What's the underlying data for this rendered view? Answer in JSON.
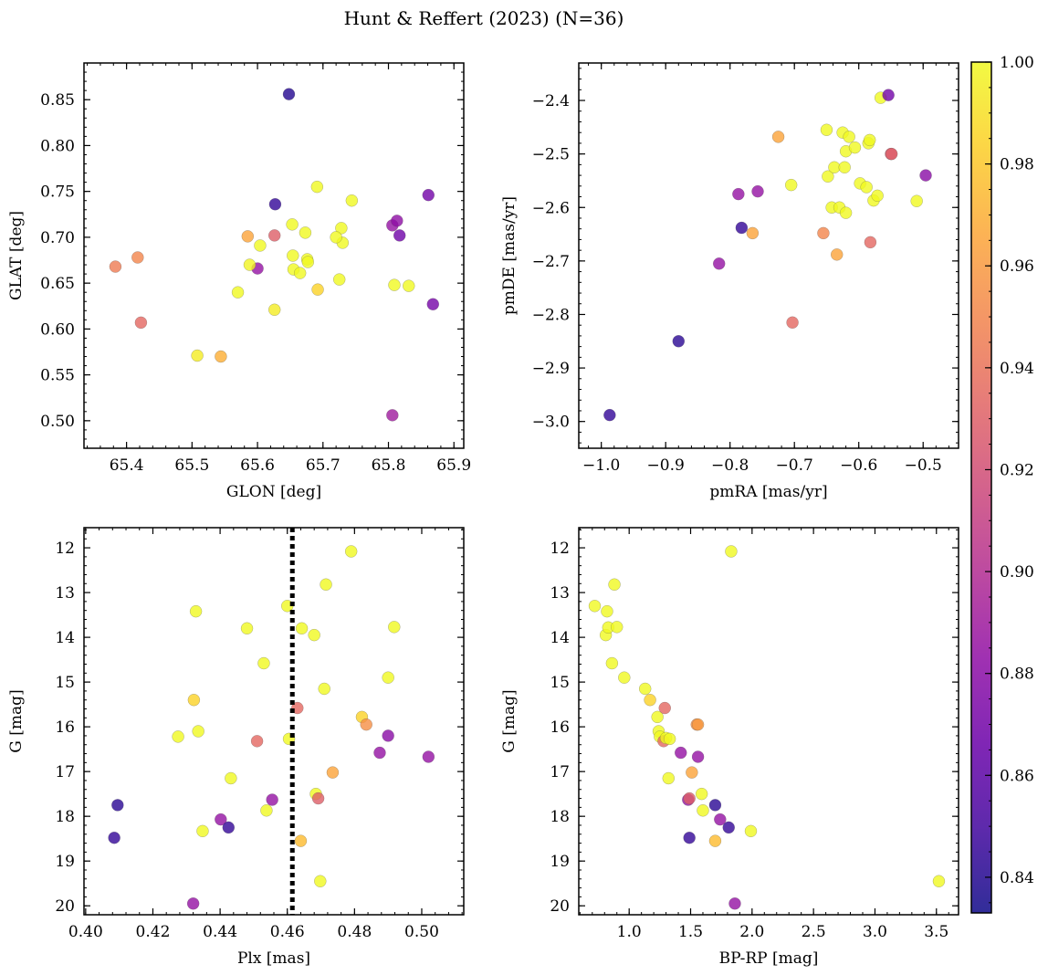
{
  "figure": {
    "title": "Hunt & Reffert (2023) (N=36)"
  },
  "colorbar": {
    "colormap": "plasma",
    "min": 0.833,
    "max": 1.0,
    "ticks": [
      0.84,
      0.86,
      0.88,
      0.9,
      0.92,
      0.94,
      0.96,
      0.98,
      1.0
    ],
    "tick_labels": [
      "0.84",
      "0.86",
      "0.88",
      "0.90",
      "0.92",
      "0.94",
      "0.96",
      "0.98",
      "1.00"
    ]
  },
  "chart_data": [
    {
      "type": "scatter",
      "xlabel": "GLON [deg]",
      "ylabel": "GLAT [deg]",
      "xlim": [
        65.335,
        65.915
      ],
      "ylim": [
        0.47,
        0.89
      ],
      "y_inverted": false,
      "xticks": [
        65.4,
        65.5,
        65.6,
        65.7,
        65.8,
        65.9
      ],
      "xtick_labels": [
        "65.4",
        "65.5",
        "65.6",
        "65.7",
        "65.8",
        "65.9"
      ],
      "yticks": [
        0.5,
        0.55,
        0.6,
        0.65,
        0.7,
        0.75,
        0.8,
        0.85
      ],
      "ytick_labels": [
        "0.50",
        "0.55",
        "0.60",
        "0.65",
        "0.70",
        "0.75",
        "0.80",
        "0.85"
      ],
      "points": [
        {
          "x": 65.648,
          "y": 0.856,
          "c": 0.84
        },
        {
          "x": 65.627,
          "y": 0.736,
          "c": 0.845
        },
        {
          "x": 65.6,
          "y": 0.666,
          "c": 0.885
        },
        {
          "x": 65.626,
          "y": 0.702,
          "c": 0.93
        },
        {
          "x": 65.585,
          "y": 0.701,
          "c": 0.965
        },
        {
          "x": 65.383,
          "y": 0.668,
          "c": 0.945
        },
        {
          "x": 65.417,
          "y": 0.678,
          "c": 0.95
        },
        {
          "x": 65.422,
          "y": 0.607,
          "c": 0.935
        },
        {
          "x": 65.508,
          "y": 0.571,
          "c": 0.995
        },
        {
          "x": 65.544,
          "y": 0.57,
          "c": 0.97
        },
        {
          "x": 65.57,
          "y": 0.64,
          "c": 1.0
        },
        {
          "x": 65.588,
          "y": 0.67,
          "c": 0.998
        },
        {
          "x": 65.604,
          "y": 0.691,
          "c": 1.0
        },
        {
          "x": 65.626,
          "y": 0.621,
          "c": 0.995
        },
        {
          "x": 65.653,
          "y": 0.714,
          "c": 1.0
        },
        {
          "x": 65.654,
          "y": 0.68,
          "c": 1.0
        },
        {
          "x": 65.655,
          "y": 0.665,
          "c": 1.0
        },
        {
          "x": 65.665,
          "y": 0.661,
          "c": 1.0
        },
        {
          "x": 65.673,
          "y": 0.705,
          "c": 1.0
        },
        {
          "x": 65.676,
          "y": 0.676,
          "c": 1.0
        },
        {
          "x": 65.677,
          "y": 0.673,
          "c": 1.0
        },
        {
          "x": 65.691,
          "y": 0.755,
          "c": 1.0
        },
        {
          "x": 65.692,
          "y": 0.643,
          "c": 0.985
        },
        {
          "x": 65.725,
          "y": 0.654,
          "c": 1.0
        },
        {
          "x": 65.728,
          "y": 0.71,
          "c": 1.0
        },
        {
          "x": 65.73,
          "y": 0.694,
          "c": 1.0
        },
        {
          "x": 65.744,
          "y": 0.74,
          "c": 1.0
        },
        {
          "x": 65.806,
          "y": 0.506,
          "c": 0.89
        },
        {
          "x": 65.806,
          "y": 0.713,
          "c": 0.885
        },
        {
          "x": 65.809,
          "y": 0.648,
          "c": 1.0
        },
        {
          "x": 65.813,
          "y": 0.718,
          "c": 0.882
        },
        {
          "x": 65.817,
          "y": 0.702,
          "c": 0.868
        },
        {
          "x": 65.831,
          "y": 0.647,
          "c": 1.0
        },
        {
          "x": 65.861,
          "y": 0.746,
          "c": 0.87
        },
        {
          "x": 65.868,
          "y": 0.627,
          "c": 0.872
        },
        {
          "x": 65.72,
          "y": 0.7,
          "c": 1.0
        }
      ]
    },
    {
      "type": "scatter",
      "xlabel": "pmRA [mas/yr]",
      "ylabel": "pmDE [mas/yr]",
      "xlim": [
        -1.035,
        -0.445
      ],
      "ylim": [
        -3.05,
        -2.33
      ],
      "y_inverted": false,
      "xticks": [
        -1.0,
        -0.9,
        -0.8,
        -0.7,
        -0.6,
        -0.5
      ],
      "xtick_labels": [
        "−1.0",
        "−0.9",
        "−0.8",
        "−0.7",
        "−0.6",
        "−0.5"
      ],
      "yticks": [
        -3.0,
        -2.9,
        -2.8,
        -2.7,
        -2.6,
        -2.5,
        -2.4
      ],
      "ytick_labels": [
        "−3.0",
        "−2.9",
        "−2.8",
        "−2.7",
        "−2.6",
        "−2.5",
        "−2.4"
      ],
      "points": [
        {
          "x": -0.987,
          "y": -2.988,
          "c": 0.845
        },
        {
          "x": -0.88,
          "y": -2.85,
          "c": 0.842
        },
        {
          "x": -0.817,
          "y": -2.705,
          "c": 0.885
        },
        {
          "x": -0.782,
          "y": -2.638,
          "c": 0.845
        },
        {
          "x": -0.787,
          "y": -2.575,
          "c": 0.885
        },
        {
          "x": -0.757,
          "y": -2.57,
          "c": 0.885
        },
        {
          "x": -0.765,
          "y": -2.648,
          "c": 0.965
        },
        {
          "x": -0.725,
          "y": -2.468,
          "c": 0.965
        },
        {
          "x": -0.705,
          "y": -2.558,
          "c": 1.0
        },
        {
          "x": -0.703,
          "y": -2.815,
          "c": 0.935
        },
        {
          "x": -0.655,
          "y": -2.648,
          "c": 0.95
        },
        {
          "x": -0.65,
          "y": -2.455,
          "c": 1.0
        },
        {
          "x": -0.648,
          "y": -2.542,
          "c": 1.0
        },
        {
          "x": -0.642,
          "y": -2.6,
          "c": 1.0
        },
        {
          "x": -0.638,
          "y": -2.525,
          "c": 1.0
        },
        {
          "x": -0.634,
          "y": -2.688,
          "c": 0.965
        },
        {
          "x": -0.63,
          "y": -2.6,
          "c": 1.0
        },
        {
          "x": -0.625,
          "y": -2.46,
          "c": 1.0
        },
        {
          "x": -0.622,
          "y": -2.525,
          "c": 1.0
        },
        {
          "x": -0.62,
          "y": -2.61,
          "c": 1.0
        },
        {
          "x": -0.62,
          "y": -2.495,
          "c": 1.0
        },
        {
          "x": -0.615,
          "y": -2.468,
          "c": 1.0
        },
        {
          "x": -0.606,
          "y": -2.488,
          "c": 1.0
        },
        {
          "x": -0.598,
          "y": -2.555,
          "c": 1.0
        },
        {
          "x": -0.588,
          "y": -2.562,
          "c": 1.0
        },
        {
          "x": -0.585,
          "y": -2.48,
          "c": 1.0
        },
        {
          "x": -0.583,
          "y": -2.474,
          "c": 1.0
        },
        {
          "x": -0.582,
          "y": -2.665,
          "c": 0.935
        },
        {
          "x": -0.577,
          "y": -2.587,
          "c": 1.0
        },
        {
          "x": -0.571,
          "y": -2.578,
          "c": 1.0
        },
        {
          "x": -0.566,
          "y": -2.395,
          "c": 1.0
        },
        {
          "x": -0.554,
          "y": -2.39,
          "c": 0.87
        },
        {
          "x": -0.55,
          "y": -2.5,
          "c": 0.925
        },
        {
          "x": -0.549,
          "y": -2.5,
          "c": 0.93
        },
        {
          "x": -0.51,
          "y": -2.588,
          "c": 1.0
        },
        {
          "x": -0.496,
          "y": -2.54,
          "c": 0.88
        }
      ]
    },
    {
      "type": "scatter",
      "xlabel": "Plx [mas]",
      "ylabel": "G [mag]",
      "xlim": [
        0.3995,
        0.5125
      ],
      "ylim": [
        20.2,
        11.55
      ],
      "y_inverted": true,
      "xticks": [
        0.4,
        0.42,
        0.44,
        0.46,
        0.48,
        0.5
      ],
      "xtick_labels": [
        "0.40",
        "0.42",
        "0.44",
        "0.46",
        "0.48",
        "0.50"
      ],
      "yticks": [
        12,
        13,
        14,
        15,
        16,
        17,
        18,
        19,
        20
      ],
      "ytick_labels": [
        "12",
        "13",
        "14",
        "15",
        "16",
        "17",
        "18",
        "19",
        "20"
      ],
      "vline": {
        "x": 0.4615,
        "style": "dotted",
        "color": "#000000"
      },
      "points": [
        {
          "x": 0.4085,
          "y": 18.48,
          "c": 0.845
        },
        {
          "x": 0.4095,
          "y": 17.75,
          "c": 0.842
        },
        {
          "x": 0.4275,
          "y": 16.22,
          "c": 1.0
        },
        {
          "x": 0.432,
          "y": 19.95,
          "c": 0.885
        },
        {
          "x": 0.4322,
          "y": 15.4,
          "c": 0.985
        },
        {
          "x": 0.4328,
          "y": 13.42,
          "c": 1.0
        },
        {
          "x": 0.4335,
          "y": 16.1,
          "c": 1.0
        },
        {
          "x": 0.4348,
          "y": 18.33,
          "c": 1.0
        },
        {
          "x": 0.4402,
          "y": 18.07,
          "c": 0.885
        },
        {
          "x": 0.4425,
          "y": 18.25,
          "c": 0.845
        },
        {
          "x": 0.4432,
          "y": 17.15,
          "c": 1.0
        },
        {
          "x": 0.448,
          "y": 13.8,
          "c": 1.0
        },
        {
          "x": 0.451,
          "y": 16.32,
          "c": 0.935
        },
        {
          "x": 0.453,
          "y": 14.58,
          "c": 1.0
        },
        {
          "x": 0.4538,
          "y": 17.87,
          "c": 1.0
        },
        {
          "x": 0.4555,
          "y": 17.63,
          "c": 0.885
        },
        {
          "x": 0.46,
          "y": 13.3,
          "c": 1.0
        },
        {
          "x": 0.4605,
          "y": 16.27,
          "c": 1.0
        },
        {
          "x": 0.463,
          "y": 15.58,
          "c": 0.935
        },
        {
          "x": 0.464,
          "y": 18.55,
          "c": 0.975
        },
        {
          "x": 0.4643,
          "y": 13.8,
          "c": 1.0
        },
        {
          "x": 0.468,
          "y": 13.95,
          "c": 1.0
        },
        {
          "x": 0.4685,
          "y": 17.5,
          "c": 1.0
        },
        {
          "x": 0.4692,
          "y": 17.6,
          "c": 0.93
        },
        {
          "x": 0.4698,
          "y": 19.45,
          "c": 1.0
        },
        {
          "x": 0.471,
          "y": 15.15,
          "c": 1.0
        },
        {
          "x": 0.4715,
          "y": 12.82,
          "c": 1.0
        },
        {
          "x": 0.4735,
          "y": 17.02,
          "c": 0.965
        },
        {
          "x": 0.479,
          "y": 12.08,
          "c": 1.0
        },
        {
          "x": 0.4822,
          "y": 15.78,
          "c": 0.985
        },
        {
          "x": 0.4835,
          "y": 15.95,
          "c": 0.955
        },
        {
          "x": 0.4875,
          "y": 16.58,
          "c": 0.885
        },
        {
          "x": 0.49,
          "y": 14.9,
          "c": 1.0
        },
        {
          "x": 0.49,
          "y": 16.2,
          "c": 0.88
        },
        {
          "x": 0.4918,
          "y": 13.77,
          "c": 1.0
        },
        {
          "x": 0.502,
          "y": 16.67,
          "c": 0.885
        }
      ]
    },
    {
      "type": "scatter",
      "xlabel": "BP-RP [mag]",
      "ylabel": "G [mag]",
      "xlim": [
        0.59,
        3.68
      ],
      "ylim": [
        20.2,
        11.55
      ],
      "y_inverted": true,
      "xticks": [
        1.0,
        1.5,
        2.0,
        2.5,
        3.0,
        3.5
      ],
      "xtick_labels": [
        "1.0",
        "1.5",
        "2.0",
        "2.5",
        "3.0",
        "3.5"
      ],
      "yticks": [
        12,
        13,
        14,
        15,
        16,
        17,
        18,
        19,
        20
      ],
      "ytick_labels": [
        "12",
        "13",
        "14",
        "15",
        "16",
        "17",
        "18",
        "19",
        "20"
      ],
      "points": [
        {
          "x": 0.72,
          "y": 13.3,
          "c": 1.0
        },
        {
          "x": 0.82,
          "y": 13.42,
          "c": 1.0
        },
        {
          "x": 0.81,
          "y": 13.95,
          "c": 1.0
        },
        {
          "x": 0.83,
          "y": 13.78,
          "c": 1.0
        },
        {
          "x": 0.88,
          "y": 12.82,
          "c": 1.0
        },
        {
          "x": 0.9,
          "y": 13.77,
          "c": 1.0
        },
        {
          "x": 0.86,
          "y": 14.58,
          "c": 1.0
        },
        {
          "x": 0.96,
          "y": 14.9,
          "c": 1.0
        },
        {
          "x": 1.13,
          "y": 15.15,
          "c": 1.0
        },
        {
          "x": 1.17,
          "y": 15.4,
          "c": 0.985
        },
        {
          "x": 1.23,
          "y": 15.78,
          "c": 1.0
        },
        {
          "x": 1.29,
          "y": 15.58,
          "c": 0.935
        },
        {
          "x": 1.24,
          "y": 16.1,
          "c": 1.0
        },
        {
          "x": 1.25,
          "y": 16.22,
          "c": 1.0
        },
        {
          "x": 1.28,
          "y": 16.32,
          "c": 0.935
        },
        {
          "x": 1.3,
          "y": 16.25,
          "c": 1.0
        },
        {
          "x": 1.33,
          "y": 16.27,
          "c": 1.0
        },
        {
          "x": 1.32,
          "y": 17.15,
          "c": 1.0
        },
        {
          "x": 1.42,
          "y": 16.58,
          "c": 0.885
        },
        {
          "x": 1.55,
          "y": 15.95,
          "c": 0.955
        },
        {
          "x": 1.56,
          "y": 16.67,
          "c": 0.885
        },
        {
          "x": 1.51,
          "y": 17.02,
          "c": 0.965
        },
        {
          "x": 1.48,
          "y": 17.63,
          "c": 0.885
        },
        {
          "x": 1.49,
          "y": 17.6,
          "c": 0.93
        },
        {
          "x": 1.59,
          "y": 17.5,
          "c": 1.0
        },
        {
          "x": 1.6,
          "y": 17.87,
          "c": 1.0
        },
        {
          "x": 1.49,
          "y": 18.48,
          "c": 0.845
        },
        {
          "x": 1.7,
          "y": 17.75,
          "c": 0.842
        },
        {
          "x": 1.74,
          "y": 18.07,
          "c": 0.885
        },
        {
          "x": 1.7,
          "y": 18.55,
          "c": 0.975
        },
        {
          "x": 1.81,
          "y": 18.25,
          "c": 0.845
        },
        {
          "x": 1.83,
          "y": 12.08,
          "c": 1.0
        },
        {
          "x": 1.86,
          "y": 19.95,
          "c": 0.885
        },
        {
          "x": 1.99,
          "y": 18.33,
          "c": 1.0
        },
        {
          "x": 3.52,
          "y": 19.45,
          "c": 1.0
        },
        {
          "x": 1.56,
          "y": 15.95,
          "c": 0.96
        }
      ]
    }
  ]
}
